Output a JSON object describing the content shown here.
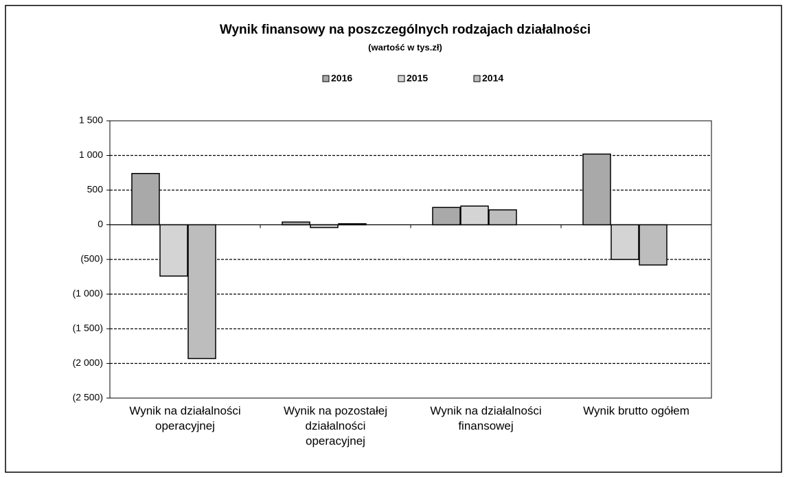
{
  "chart_data": {
    "type": "bar",
    "title": "Wynik finansowy na poszczególnych rodzajach działalności",
    "subtitle": "(wartość w tys.zł)",
    "categories": [
      "Wynik na działalności\noperacyjnej",
      "Wynik na pozostałej\ndziałalności\noperacyjnej",
      "Wynik na działalności\nfinansowej",
      "Wynik brutto ogółem"
    ],
    "series": [
      {
        "name": "2016",
        "color": "#a9a9a9",
        "values": [
          740,
          40,
          250,
          1020
        ]
      },
      {
        "name": "2015",
        "color": "#d4d4d4",
        "values": [
          -740,
          -40,
          270,
          -500
        ]
      },
      {
        "name": "2014",
        "color": "#bdbdbd",
        "values": [
          -1930,
          15,
          215,
          -580
        ]
      }
    ],
    "ylim": [
      -2500,
      1500
    ],
    "yticks": [
      {
        "value": -2500,
        "label": "(2 500)"
      },
      {
        "value": -2000,
        "label": "(2 000)"
      },
      {
        "value": -1500,
        "label": "(1 500)"
      },
      {
        "value": -1000,
        "label": "(1 000)"
      },
      {
        "value": -500,
        "label": "(500)"
      },
      0,
      {
        "value": 500,
        "label": "500"
      },
      {
        "value": 1000,
        "label": "1 000"
      },
      {
        "value": 1500,
        "label": "1 500"
      }
    ],
    "grid": true
  }
}
